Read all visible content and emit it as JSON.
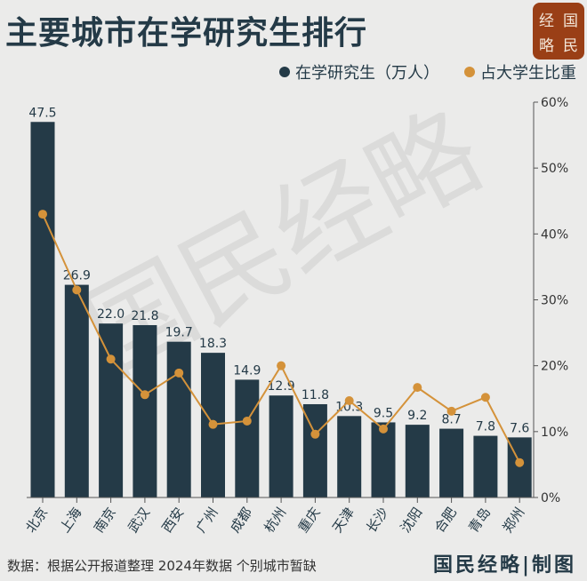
{
  "title": "主要城市在学研究生排行",
  "logo": [
    "经",
    "国",
    "略",
    "民"
  ],
  "watermark": "国民经略",
  "footer": "数据：根据公开报道整理 2024年数据 个别城市暂缺",
  "brand": "国民经略|制图",
  "colors": {
    "bar": "#243a47",
    "line": "#d4923a",
    "background": "#ebebea"
  },
  "chart_data": {
    "type": "bar+line",
    "title": "主要城市在学研究生排行",
    "categories": [
      "北京",
      "上海",
      "南京",
      "武汉",
      "西安",
      "广州",
      "成都",
      "杭州",
      "重庆",
      "天津",
      "长沙",
      "沈阳",
      "合肥",
      "青岛",
      "郑州"
    ],
    "series": [
      {
        "name": "在学研究生（万人）",
        "type": "bar",
        "axis": "left",
        "values": [
          47.5,
          26.9,
          22.0,
          21.8,
          19.7,
          18.3,
          14.9,
          12.9,
          11.8,
          10.3,
          9.5,
          9.2,
          8.7,
          7.8,
          7.6
        ],
        "labels": [
          "47.5",
          "26.9",
          "22.0",
          "21.8",
          "19.7",
          "18.3",
          "14.9",
          "12.9",
          "11.8",
          "10.3",
          "9.5",
          "9.2",
          "8.7",
          "7.8",
          "7.6"
        ]
      },
      {
        "name": "占大学生比重",
        "type": "line",
        "axis": "right",
        "values": [
          43.0,
          31.5,
          21.0,
          15.6,
          18.9,
          11.1,
          11.6,
          20.0,
          9.6,
          14.7,
          10.4,
          16.7,
          13.1,
          15.2,
          5.3
        ]
      }
    ],
    "left_ylim": [
      0,
      50
    ],
    "right_ylim": [
      0,
      60
    ],
    "right_ticks": [
      "0%",
      "10%",
      "20%",
      "30%",
      "40%",
      "50%",
      "60%"
    ],
    "legend": "top-right",
    "grid": false
  }
}
